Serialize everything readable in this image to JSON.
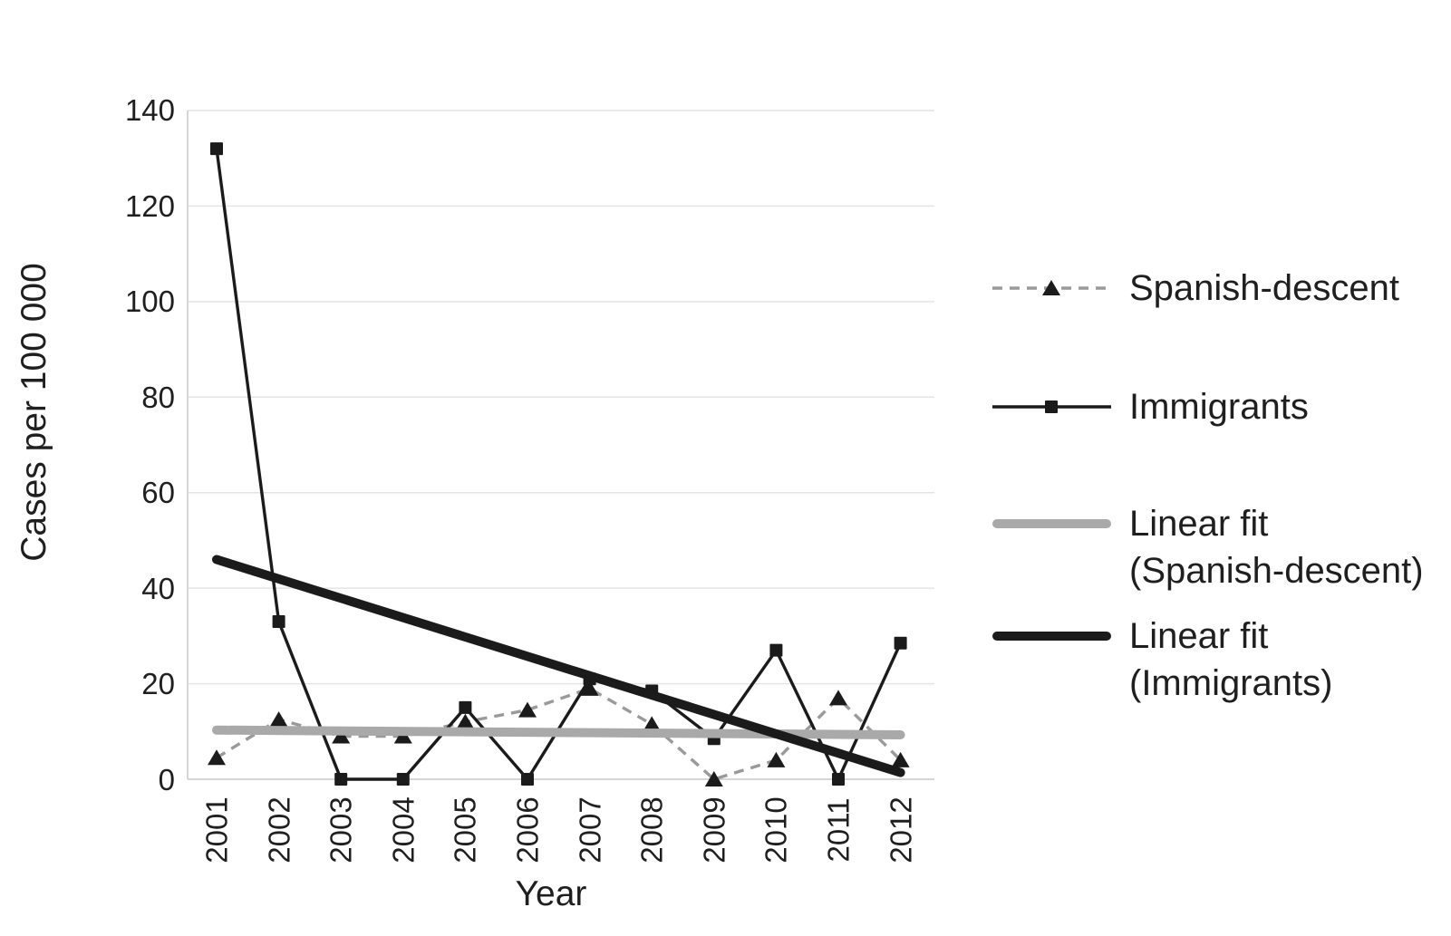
{
  "chart_data": {
    "type": "line",
    "title": "",
    "xlabel": "Year",
    "ylabel": "Cases per 100 000",
    "x": [
      2001,
      2002,
      2003,
      2004,
      2005,
      2006,
      2007,
      2008,
      2009,
      2010,
      2011,
      2012
    ],
    "y_ticks": [
      0,
      20,
      40,
      60,
      80,
      100,
      120,
      140
    ],
    "ylim": [
      0,
      140
    ],
    "grid": "horizontal",
    "legend_position": "right",
    "colors": {
      "grid": "#e4e4e4",
      "axis": "#c9c9c9",
      "text": "#1f1f1f",
      "gray_series": "#9a9a9a",
      "gray_fit": "#a9a9a9",
      "black": "#1b1b1b"
    },
    "series": [
      {
        "name": "Spanish-descent",
        "style": "dashed",
        "marker": "triangle",
        "color": "#9a9a9a",
        "marker_color": "#1b1b1b",
        "values": [
          4.5,
          12.5,
          9,
          9,
          12,
          14.5,
          19,
          11.5,
          0,
          4,
          17,
          4
        ]
      },
      {
        "name": "Immigrants",
        "style": "solid",
        "marker": "square",
        "color": "#1b1b1b",
        "marker_color": "#1b1b1b",
        "values": [
          132,
          33,
          0,
          0,
          15,
          0,
          21,
          18.5,
          8.5,
          27,
          0,
          28.5
        ]
      },
      {
        "name": "Linear fit\n(Spanish-descent)",
        "style": "thick-line",
        "marker": "none",
        "color": "#a9a9a9",
        "fit_endpoints": [
          10.3,
          9.3
        ]
      },
      {
        "name": "Linear fit\n(Immigrants)",
        "style": "thick-line",
        "marker": "none",
        "color": "#1b1b1b",
        "fit_endpoints": [
          46,
          1.4
        ]
      }
    ]
  }
}
